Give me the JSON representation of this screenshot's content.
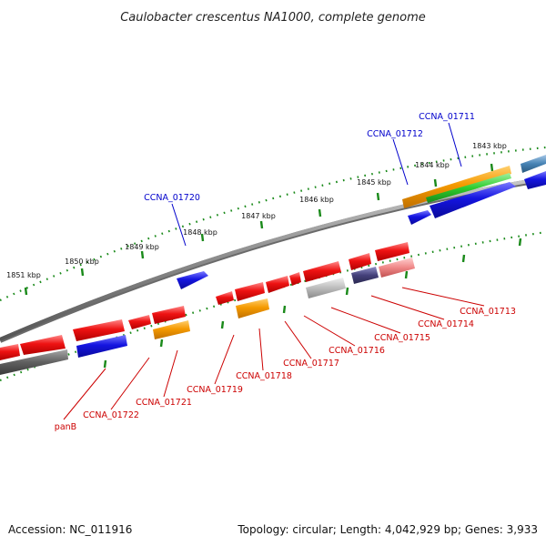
{
  "title": "Caulobacter crescentus NA1000, complete genome",
  "footer": {
    "accession": "Accession: NC_011916",
    "summary": "Topology: circular; Length: 4,042,929 bp; Genes: 3,933"
  },
  "colors": {
    "backbone": "#8c8c8c",
    "tick": "#1a8a1a",
    "forward_label": "#0000cc",
    "reverse_label": "#cc0000",
    "red": "#e81010",
    "blue": "#1414e0",
    "orange": "#f5a000",
    "green": "#2ecc2e",
    "gray_dark": "#606060",
    "gray_light": "#b8b8b8",
    "purple": "#44407a",
    "pink": "#f08888",
    "steel": "#4682b4"
  },
  "scale_labels": [
    "1843 kbp",
    "1844 kbp",
    "1845 kbp",
    "1846 kbp",
    "1847 kbp",
    "1848 kbp",
    "1849 kbp",
    "1850 kbp",
    "1851 kbp"
  ],
  "gene_labels": {
    "forward": [
      "CCNA_01711",
      "CCNA_01712",
      "CCNA_01720"
    ],
    "reverse": [
      "CCNA_01713",
      "CCNA_01714",
      "CCNA_01715",
      "CCNA_01716",
      "CCNA_01717",
      "CCNA_01718",
      "CCNA_01719",
      "CCNA_01721",
      "CCNA_01722",
      "panB"
    ]
  }
}
